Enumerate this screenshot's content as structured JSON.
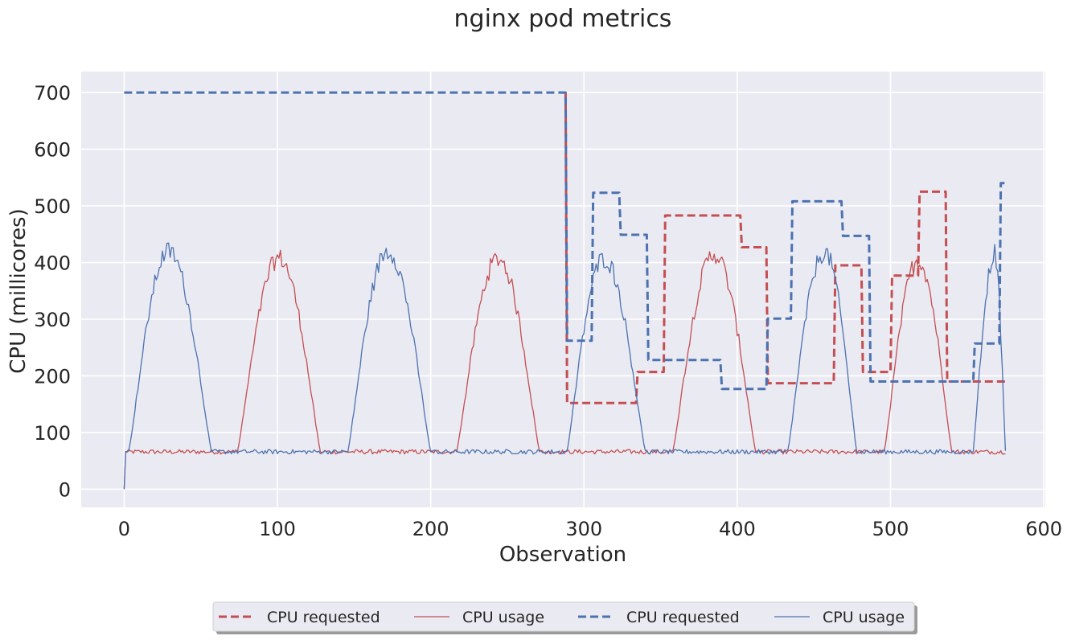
{
  "chart_data": {
    "type": "line",
    "title": "nginx pod metrics",
    "xlabel": "Observation",
    "ylabel": "CPU (millicores)",
    "xlim": [
      -28,
      601
    ],
    "ylim": [
      -32,
      737
    ],
    "xticks": [
      0,
      100,
      200,
      300,
      400,
      500,
      600
    ],
    "yticks": [
      0,
      100,
      200,
      300,
      400,
      500,
      600,
      700
    ],
    "grid": true,
    "background": "#eaeaf2",
    "legend_position": "bottom-center",
    "colors": {
      "red": "#c44e52",
      "blue": "#4c72b0"
    },
    "series": [
      {
        "name": "CPU requested",
        "color": "#c44e52",
        "style": "dashed",
        "steps": [
          [
            288,
            700
          ],
          [
            289,
            152
          ],
          [
            334,
            152
          ],
          [
            335,
            207
          ],
          [
            352,
            207
          ],
          [
            353,
            483
          ],
          [
            402,
            483
          ],
          [
            403,
            427
          ],
          [
            419,
            427
          ],
          [
            420,
            187
          ],
          [
            463,
            187
          ],
          [
            464,
            395
          ],
          [
            481,
            395
          ],
          [
            482,
            207
          ],
          [
            500,
            207
          ],
          [
            501,
            377
          ],
          [
            518,
            377
          ],
          [
            519,
            525
          ],
          [
            536,
            525
          ],
          [
            537,
            190
          ],
          [
            575,
            190
          ]
        ]
      },
      {
        "name": "CPU usage",
        "color": "#c44e52",
        "style": "solid",
        "baseline": 66,
        "noise": 4,
        "peaks": [
          [
            101,
            74,
            128,
            408
          ],
          [
            244,
            217,
            271,
            407
          ],
          [
            385,
            358,
            412,
            415
          ],
          [
            518,
            496,
            540,
            404
          ]
        ]
      },
      {
        "name": "CPU requested",
        "color": "#4c72b0",
        "style": "dashed",
        "steps": [
          [
            0,
            700
          ],
          [
            288,
            700
          ],
          [
            289,
            262
          ],
          [
            305,
            262
          ],
          [
            306,
            523
          ],
          [
            323,
            523
          ],
          [
            324,
            449
          ],
          [
            341,
            449
          ],
          [
            342,
            228
          ],
          [
            389,
            228
          ],
          [
            390,
            177
          ],
          [
            419,
            177
          ],
          [
            420,
            301
          ],
          [
            435,
            301
          ],
          [
            436,
            508
          ],
          [
            468,
            508
          ],
          [
            469,
            447
          ],
          [
            486,
            447
          ],
          [
            487,
            190
          ],
          [
            554,
            190
          ],
          [
            555,
            257
          ],
          [
            571,
            257
          ],
          [
            572,
            540
          ],
          [
            575,
            540
          ]
        ]
      },
      {
        "name": "CPU usage",
        "color": "#4c72b0",
        "style": "solid",
        "baseline": 66,
        "noise": 4,
        "peaks": [
          [
            29,
            3,
            57,
            420
          ],
          [
            172,
            146,
            200,
            420
          ],
          [
            313,
            289,
            340,
            407
          ],
          [
            457,
            433,
            478,
            418
          ],
          [
            568,
            554,
            575,
            416
          ]
        ]
      }
    ]
  }
}
